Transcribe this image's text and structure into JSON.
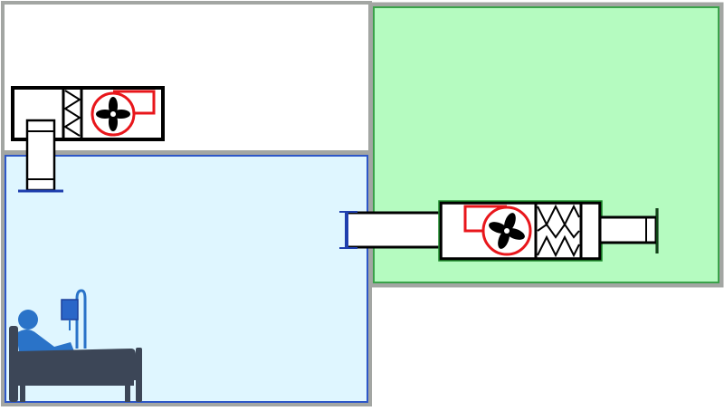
{
  "colors": {
    "frame": "#a3a6a3",
    "patient_room_fill": "#dff6ff",
    "patient_room_border": "#2d57c8",
    "clean_zone_fill": "#b5fbc0",
    "clean_zone_border": "#3aa24a",
    "equipment_outline": "#000000",
    "fan_housing": "#e8161b",
    "duct_flange": "#1f3fae",
    "patient_icon": "#2a73c8",
    "bed_icon": "#3c4657",
    "iv_bag": "#2a66c8",
    "anteroom_fill": "#ffffff"
  },
  "icons": {
    "supply_fan": "fan-icon",
    "filter": "filter-icon",
    "patient": "patient-in-bed-icon",
    "iv_drip": "iv-drip-icon"
  }
}
